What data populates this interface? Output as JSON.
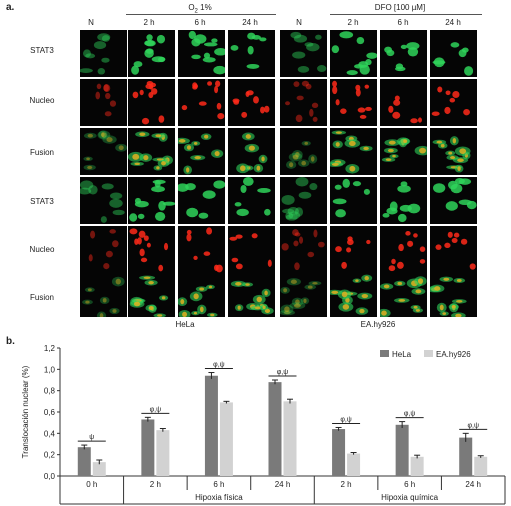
{
  "panel_a": {
    "label": "a.",
    "col_n": "N",
    "o2_prefix": "O",
    "o2_sub": "2",
    "o2_suffix": " 1%",
    "dfo_title": "DFO [100 µM]",
    "times": [
      "2 h",
      "6 h",
      "24 h"
    ],
    "row_labels": [
      "STAT3",
      "Nucleo",
      "Fusion",
      "STAT3",
      "Nucleo",
      "Fusion"
    ],
    "cell_lines": [
      "HeLa",
      "EA.hy926"
    ],
    "colors": {
      "stat3": "#2fd35a",
      "nucleo": "#ff2a1a",
      "fusion": "#e0b020"
    }
  },
  "panel_b": {
    "label": "b.",
    "chart_data": {
      "type": "bar",
      "ylabel": "Translocación nuclear (%)",
      "ylim": [
        0,
        1.2
      ],
      "yticks": [
        "0,0",
        "0,2",
        "0,4",
        "0,6",
        "0,8",
        "1,0",
        "1,2"
      ],
      "categories": [
        "0 h",
        "2 h",
        "6 h",
        "24 h",
        "2 h",
        "6 h",
        "24 h"
      ],
      "groups": [
        {
          "label": "Hipoxia física",
          "span": [
            1,
            3
          ]
        },
        {
          "label": "Hipoxia química",
          "span": [
            4,
            6
          ]
        }
      ],
      "series": [
        {
          "name": "HeLa",
          "color": "#7a7a7a",
          "values": [
            0.27,
            0.53,
            0.94,
            0.88,
            0.44,
            0.48,
            0.36
          ],
          "errors": [
            0.02,
            0.02,
            0.03,
            0.02,
            0.015,
            0.03,
            0.04
          ]
        },
        {
          "name": "EA.hy926",
          "color": "#d2d2d2",
          "values": [
            0.13,
            0.43,
            0.69,
            0.7,
            0.21,
            0.18,
            0.18
          ],
          "errors": [
            0.02,
            0.015,
            0.01,
            0.02,
            0.01,
            0.015,
            0.01
          ]
        }
      ],
      "significance": [
        "ψ",
        "φ,ψ",
        "φ,ψ",
        "φ,ψ",
        "φ,ψ",
        "φ,ψ",
        "φ,ψ"
      ],
      "legend_position": "top-right"
    }
  }
}
